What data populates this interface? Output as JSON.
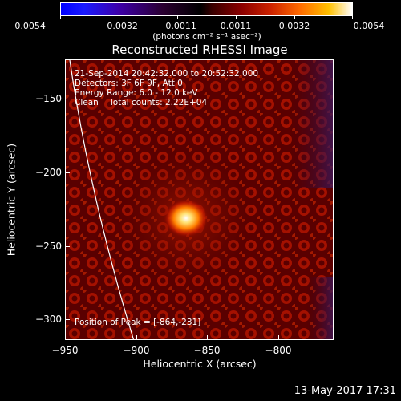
{
  "colorbar": {
    "ticks": [
      "−0.0054",
      "−0.0032",
      "−0.0011",
      "0.0011",
      "0.0032",
      "0.0054"
    ],
    "units_label": "(photons cm⁻² s⁻¹ asec⁻²)"
  },
  "plot": {
    "title": "Reconstructed RHESSI Image",
    "xlabel": "Heliocentric X (arcsec)",
    "ylabel": "Heliocentric Y (arcsec)",
    "x_ticks": [
      "−950",
      "−900",
      "−850",
      "−800"
    ],
    "y_ticks": [
      "−150",
      "−200",
      "−250",
      "−300"
    ],
    "xlim": [
      -950,
      -780
    ],
    "ylim": [
      -320,
      -125
    ],
    "peak": {
      "x": -864,
      "y": -231
    }
  },
  "info": {
    "time_range": "21-Sep-2014 20:42:32.000 to 20:52:32.000",
    "detectors": "Detectors: 3F 6F 9F, Att 0",
    "energy": "Energy Range: 6.0 - 12.0 keV",
    "clean": "Clean    Total counts: 2.22E+04",
    "peak_position": "Position of Peak = [-864,-231]"
  },
  "footer": {
    "timestamp": "13-May-2017 17:31"
  }
}
